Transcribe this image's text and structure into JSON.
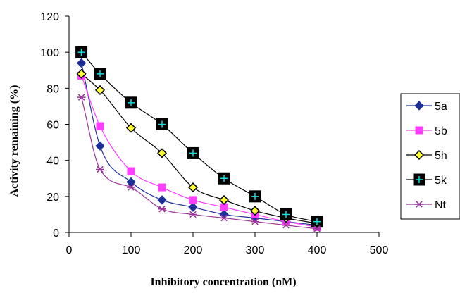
{
  "chart_data": {
    "type": "line",
    "title": "",
    "xlabel": "Inhibitory concentration (nM)",
    "ylabel": "Activity  remaining (%)",
    "xlim": [
      0,
      500
    ],
    "ylim": [
      0,
      120
    ],
    "xticks": [
      0,
      100,
      200,
      300,
      400,
      500
    ],
    "yticks": [
      0,
      20,
      40,
      60,
      80,
      100,
      120
    ],
    "grid": false,
    "legend_position": "right",
    "series": [
      {
        "name": "5a",
        "color": "#1f2f9a",
        "marker": "diamond",
        "x": [
          20,
          50,
          100,
          150,
          200,
          250,
          300,
          350,
          400
        ],
        "y": [
          94,
          48,
          28,
          18,
          14,
          10,
          8,
          6,
          4
        ]
      },
      {
        "name": "5b",
        "color": "#ff3cff",
        "marker": "square",
        "x": [
          20,
          50,
          100,
          150,
          200,
          250,
          300,
          350,
          400
        ],
        "y": [
          87,
          59,
          34,
          25,
          18,
          14,
          10,
          6,
          3
        ]
      },
      {
        "name": "5h",
        "color": "#000000",
        "marker": "diamond-yellow",
        "x": [
          20,
          50,
          100,
          150,
          200,
          250,
          300,
          350,
          400
        ],
        "y": [
          88,
          79,
          58,
          44,
          25,
          18,
          12,
          8,
          5
        ]
      },
      {
        "name": "5k",
        "color": "#000000",
        "marker": "square-plus",
        "x": [
          20,
          50,
          100,
          150,
          200,
          250,
          300,
          350,
          400
        ],
        "y": [
          100,
          88,
          72,
          60,
          44,
          30,
          20,
          10,
          6
        ]
      },
      {
        "name": "Nt",
        "color": "#993399",
        "marker": "asterisk",
        "x": [
          20,
          50,
          100,
          150,
          200,
          250,
          300,
          350,
          400
        ],
        "y": [
          75,
          35,
          25,
          13,
          10,
          8,
          6,
          4,
          2
        ]
      }
    ]
  }
}
